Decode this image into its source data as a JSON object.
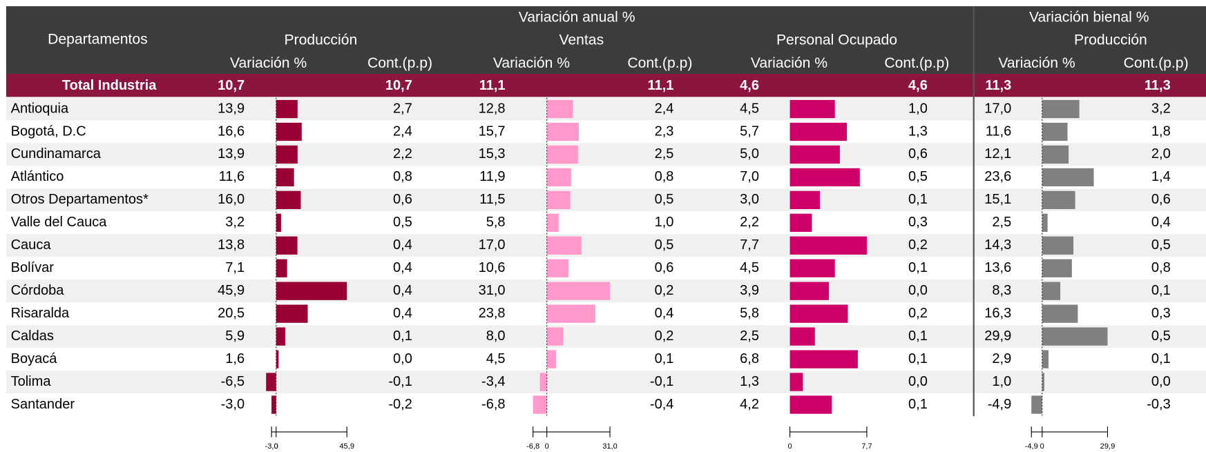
{
  "header": {
    "group_annual": "Variación anual %",
    "group_biennial": "Variación bienal %",
    "departments": "Departamentos",
    "production": "Producción",
    "sales": "Ventas",
    "employment": "Personal Ocupado",
    "production_biennial": "Producción",
    "sub": [
      "Variación %",
      "Cont.(p.p)",
      "Variación %",
      "Cont.(p.p)",
      "Variación %",
      "Cont.(p.p)",
      "Variación %",
      "Cont.(p.p)"
    ]
  },
  "total": {
    "name": "Total Industria",
    "values": [
      10.7,
      10.7,
      11.1,
      11.1,
      4.6,
      4.6,
      11.3,
      11.3
    ],
    "value_labels": [
      "10,7",
      "10,7",
      "11,1",
      "11,1",
      "4,6",
      "4,6",
      "11,3",
      "11,3"
    ]
  },
  "bar_colors": [
    "#990033",
    "#ff99cc",
    "#cc0066",
    "#808080"
  ],
  "axes": [
    {
      "lim": [
        -3.0,
        45.9
      ],
      "ticks": [
        {
          "value": -3.0,
          "label": "-3,0"
        },
        0,
        {
          "value": 45.9,
          "label": "45,9"
        }
      ]
    },
    {
      "lim": [
        -6.8,
        31.0
      ],
      "ticks": [
        {
          "value": -6.8,
          "label": "-6,8"
        },
        0,
        {
          "value": 31.0,
          "label": "31,0"
        }
      ]
    },
    {
      "lim": [
        0,
        7.7
      ],
      "ticks": [
        0,
        {
          "value": 7.7,
          "label": "7,7"
        }
      ]
    },
    {
      "lim": [
        -4.9,
        29.9
      ],
      "ticks": [
        {
          "value": -4.9,
          "label": "-4,9"
        },
        0,
        {
          "value": 29.9,
          "label": "29,9"
        }
      ]
    }
  ],
  "rows": [
    {
      "name": "Antioquia",
      "values": [
        13.9,
        2.7,
        12.8,
        2.4,
        4.5,
        1.0,
        17.0,
        3.2
      ],
      "value_labels": [
        "13,9",
        "2,7",
        "12,8",
        "2,4",
        "4,5",
        "1,0",
        "17,0",
        "3,2"
      ]
    },
    {
      "name": "Bogotá, D.C",
      "values": [
        16.6,
        2.4,
        15.7,
        2.3,
        5.7,
        1.3,
        11.6,
        1.8
      ],
      "value_labels": [
        "16,6",
        "2,4",
        "15,7",
        "2,3",
        "5,7",
        "1,3",
        "11,6",
        "1,8"
      ]
    },
    {
      "name": "Cundinamarca",
      "values": [
        13.9,
        2.2,
        15.3,
        2.5,
        5.0,
        0.6,
        12.1,
        2.0
      ],
      "value_labels": [
        "13,9",
        "2,2",
        "15,3",
        "2,5",
        "5,0",
        "0,6",
        "12,1",
        "2,0"
      ]
    },
    {
      "name": "Atlántico",
      "values": [
        11.6,
        0.8,
        11.9,
        0.8,
        7.0,
        0.5,
        23.6,
        1.4
      ],
      "value_labels": [
        "11,6",
        "0,8",
        "11,9",
        "0,8",
        "7,0",
        "0,5",
        "23,6",
        "1,4"
      ]
    },
    {
      "name": "Otros Departamentos*",
      "values": [
        16.0,
        0.6,
        11.5,
        0.5,
        3.0,
        0.1,
        15.1,
        0.6
      ],
      "value_labels": [
        "16,0",
        "0,6",
        "11,5",
        "0,5",
        "3,0",
        "0,1",
        "15,1",
        "0,6"
      ]
    },
    {
      "name": "Valle del Cauca",
      "values": [
        3.2,
        0.5,
        5.8,
        1.0,
        2.2,
        0.3,
        2.5,
        0.4
      ],
      "value_labels": [
        "3,2",
        "0,5",
        "5,8",
        "1,0",
        "2,2",
        "0,3",
        "2,5",
        "0,4"
      ]
    },
    {
      "name": "Cauca",
      "values": [
        13.8,
        0.4,
        17.0,
        0.5,
        7.7,
        0.2,
        14.3,
        0.5
      ],
      "value_labels": [
        "13,8",
        "0,4",
        "17,0",
        "0,5",
        "7,7",
        "0,2",
        "14,3",
        "0,5"
      ]
    },
    {
      "name": "Bolívar",
      "values": [
        7.1,
        0.4,
        10.6,
        0.6,
        4.5,
        0.1,
        13.6,
        0.8
      ],
      "value_labels": [
        "7,1",
        "0,4",
        "10,6",
        "0,6",
        "4,5",
        "0,1",
        "13,6",
        "0,8"
      ]
    },
    {
      "name": "Córdoba",
      "values": [
        45.9,
        0.4,
        31.0,
        0.2,
        3.9,
        0.0,
        8.3,
        0.1
      ],
      "value_labels": [
        "45,9",
        "0,4",
        "31,0",
        "0,2",
        "3,9",
        "0,0",
        "8,3",
        "0,1"
      ]
    },
    {
      "name": "Risaralda",
      "values": [
        20.5,
        0.4,
        23.8,
        0.4,
        5.8,
        0.2,
        16.3,
        0.3
      ],
      "value_labels": [
        "20,5",
        "0,4",
        "23,8",
        "0,4",
        "5,8",
        "0,2",
        "16,3",
        "0,3"
      ]
    },
    {
      "name": "Caldas",
      "values": [
        5.9,
        0.1,
        8.0,
        0.2,
        2.5,
        0.1,
        29.9,
        0.5
      ],
      "value_labels": [
        "5,9",
        "0,1",
        "8,0",
        "0,2",
        "2,5",
        "0,1",
        "29,9",
        "0,5"
      ]
    },
    {
      "name": "Boyacá",
      "values": [
        1.6,
        0.0,
        4.5,
        0.1,
        6.8,
        0.1,
        2.9,
        0.1
      ],
      "value_labels": [
        "1,6",
        "0,0",
        "4,5",
        "0,1",
        "6,8",
        "0,1",
        "2,9",
        "0,1"
      ]
    },
    {
      "name": "Tolima",
      "values": [
        -6.5,
        -0.1,
        -3.4,
        -0.1,
        1.3,
        0.0,
        1.0,
        0.0
      ],
      "value_labels": [
        "-6,5",
        "-0,1",
        "-3,4",
        "-0,1",
        "1,3",
        "0,0",
        "1,0",
        "0,0"
      ]
    },
    {
      "name": "Santander",
      "values": [
        -3.0,
        -0.2,
        -6.8,
        -0.4,
        4.2,
        0.1,
        -4.9,
        -0.3
      ],
      "value_labels": [
        "-3,0",
        "-0,2",
        "-6,8",
        "-0,4",
        "4,2",
        "0,1",
        "-4,9",
        "-0,3"
      ]
    }
  ]
}
